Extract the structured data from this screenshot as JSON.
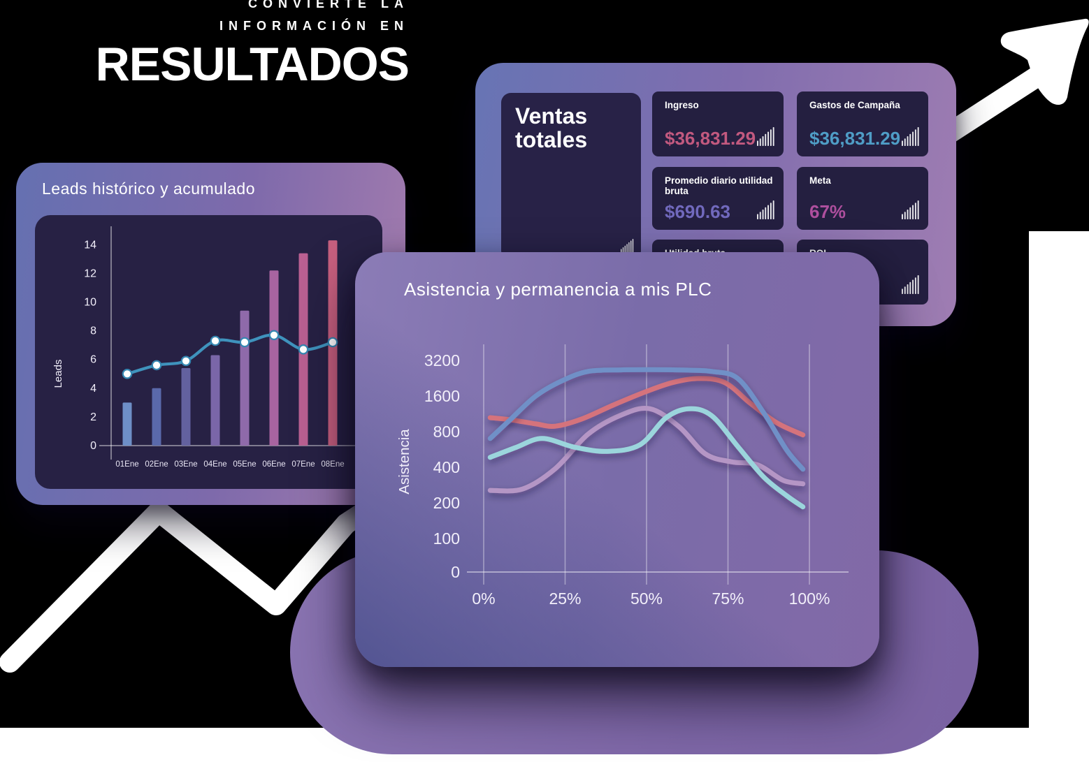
{
  "hero": {
    "line1": "CONVIERTE LA",
    "line2": "INFORMACIÓN EN",
    "line3": "RESULTADOS"
  },
  "leads_panel": {
    "title": "Leads histórico y acumulado"
  },
  "ventas_panel": {
    "title_line1": "Ventas",
    "title_line2": "totales",
    "kpis": [
      {
        "label": "Ingreso",
        "value": "$36,831.29",
        "value_color": "#c2597f"
      },
      {
        "label": "Gastos de Campaña",
        "value": "$36,831.29",
        "value_color": "#4f9dc6"
      },
      {
        "label": "Promedio diario utilidad bruta",
        "value": "$690.63",
        "value_color": "#7169bd"
      },
      {
        "label": "Meta",
        "value": "67%",
        "value_color": "#ae4f9e"
      },
      {
        "label": "Utilidad bruta",
        "value": "",
        "value_color": "#ffffff"
      },
      {
        "label": "ROI",
        "value": "",
        "value_color": "#ffffff"
      }
    ]
  },
  "asistencia_panel": {
    "title": "Asistencia y permanencia a mis PLC"
  },
  "decor": {
    "arrow_color": "#ffffff",
    "blob_color": "#7d66a6",
    "panel_gradient_from": "#6774b4",
    "panel_gradient_to": "#9f7db2",
    "chart_bg": "#272144"
  },
  "chart_data": [
    {
      "type": "bar",
      "title": "Leads histórico y acumulado",
      "categories": [
        "01Ene",
        "02Ene",
        "03Ene",
        "04Ene",
        "05Ene",
        "06Ene",
        "07Ene",
        "08Ene"
      ],
      "xlabel": "",
      "ylabel": "Leads",
      "ylim": [
        0,
        14
      ],
      "yticks": [
        0,
        2,
        4,
        6,
        8,
        10,
        12,
        14
      ],
      "grid": false,
      "legend": "none",
      "series": [
        {
          "name": "leads-diarios-bars",
          "type": "bar",
          "values": [
            3.0,
            4.0,
            5.4,
            6.3,
            9.4,
            12.2,
            13.4,
            14.3
          ],
          "bar_colors": [
            "#6e8fc7",
            "#5a69ab",
            "#63619f",
            "#7a66a8",
            "#8f6aaa",
            "#a864a0",
            "#ba6092",
            "#c65f7e"
          ]
        },
        {
          "name": "leads-acumulado-line",
          "type": "line",
          "values": [
            5.0,
            5.6,
            5.9,
            7.3,
            7.2,
            7.7,
            6.7,
            7.2
          ],
          "color": "#3f93bd",
          "marker_fill": "#ffffff",
          "marker_stroke": "#3587b2"
        }
      ]
    },
    {
      "type": "line",
      "title": "Asistencia y permanencia a mis PLC",
      "xlabel": "",
      "ylabel": "Asistencia",
      "x_ticks": [
        "0%",
        "25%",
        "50%",
        "75%",
        "100%"
      ],
      "yticks": [
        0,
        100,
        200,
        400,
        800,
        1600,
        3200
      ],
      "yscale": "log2",
      "grid": "vertical-only",
      "legend": "none",
      "series": [
        {
          "name": "serie-lavanda",
          "color": "#b596c5",
          "points": [
            [
              2,
              255
            ],
            [
              12,
              262
            ],
            [
              22,
              390
            ],
            [
              32,
              760
            ],
            [
              42,
              1100
            ],
            [
              51,
              1250
            ],
            [
              60,
              880
            ],
            [
              68,
              520
            ],
            [
              76,
              445
            ],
            [
              84,
              420
            ],
            [
              92,
              310
            ],
            [
              98,
              290
            ]
          ]
        },
        {
          "name": "serie-coral",
          "color": "#d5737c",
          "points": [
            [
              2,
              1050
            ],
            [
              8,
              1010
            ],
            [
              16,
              930
            ],
            [
              22,
              890
            ],
            [
              30,
              1020
            ],
            [
              40,
              1350
            ],
            [
              50,
              1750
            ],
            [
              58,
              2080
            ],
            [
              66,
              2250
            ],
            [
              74,
              2080
            ],
            [
              82,
              1380
            ],
            [
              90,
              950
            ],
            [
              98,
              750
            ]
          ]
        },
        {
          "name": "serie-azul",
          "color": "#7090c7",
          "points": [
            [
              2,
              700
            ],
            [
              8,
              1000
            ],
            [
              16,
              1600
            ],
            [
              24,
              2150
            ],
            [
              32,
              2580
            ],
            [
              42,
              2660
            ],
            [
              52,
              2670
            ],
            [
              62,
              2650
            ],
            [
              70,
              2580
            ],
            [
              78,
              2250
            ],
            [
              86,
              1150
            ],
            [
              93,
              560
            ],
            [
              98,
              385
            ]
          ]
        },
        {
          "name": "serie-cian",
          "color": "#9bd5dc",
          "points": [
            [
              2,
              485
            ],
            [
              10,
              590
            ],
            [
              18,
              700
            ],
            [
              28,
              590
            ],
            [
              38,
              545
            ],
            [
              48,
              620
            ],
            [
              56,
              1050
            ],
            [
              63,
              1250
            ],
            [
              70,
              1090
            ],
            [
              78,
              600
            ],
            [
              86,
              330
            ],
            [
              93,
              230
            ],
            [
              98,
              185
            ]
          ]
        }
      ]
    }
  ]
}
